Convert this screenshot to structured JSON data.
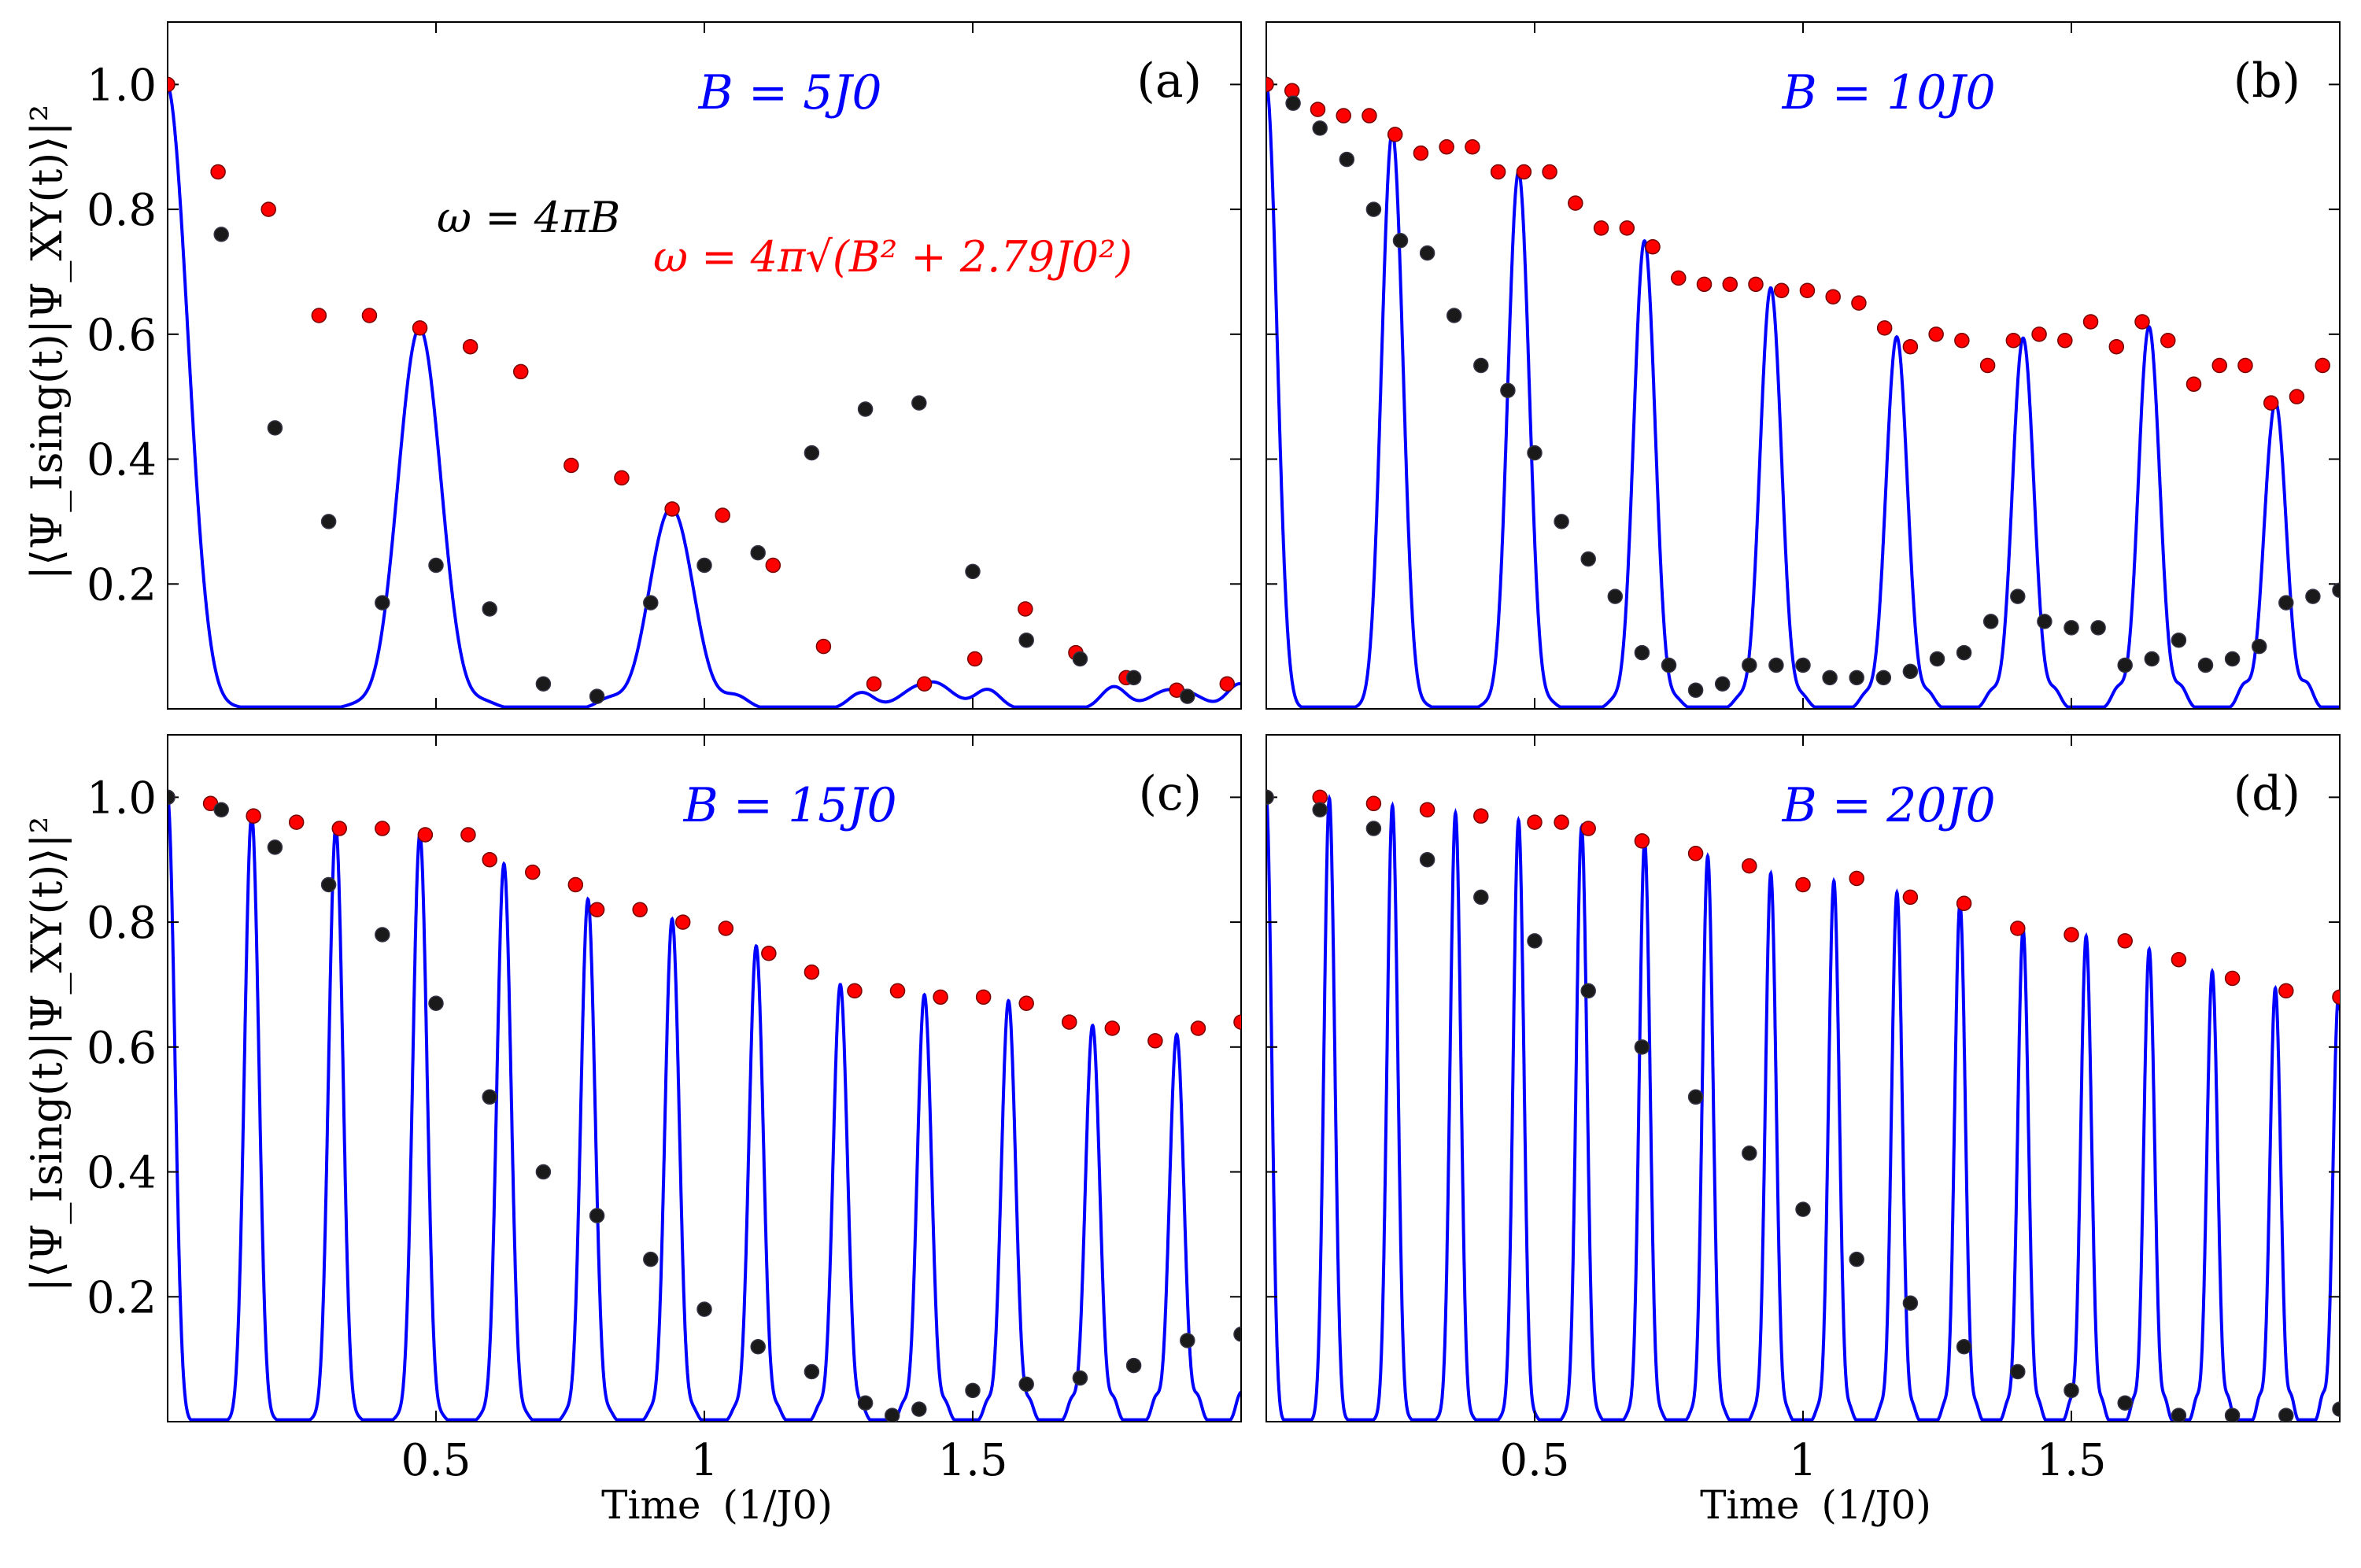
{
  "chart_data": {
    "type": "line",
    "xlabel": "Time",
    "xlabel_unit": "(1/J0)",
    "ylabel": "|⟨Ψ_Ising(t)|Ψ_XY(t)⟩|²",
    "xlim": [
      0,
      2
    ],
    "ylim": [
      0,
      1.1
    ],
    "xticks": [
      "0.5",
      "1",
      "1.5"
    ],
    "yticks": [
      "0.2",
      "0.4",
      "0.6",
      "0.8",
      "1.0"
    ],
    "colors": {
      "line": "#0000ff",
      "red_markers": "#ff0000",
      "black_markers": "#000000"
    },
    "legend_annotations": {
      "black": "ω = 4πB",
      "red": "ω = 4π√(B² + 2.79J0²)"
    },
    "panels": [
      {
        "id": "a",
        "letter": "(a)",
        "B_label": "B = 5J0",
        "B": 5,
        "red_markers": [
          [
            0,
            1.0
          ],
          [
            0.094,
            0.86
          ],
          [
            0.188,
            0.8
          ],
          [
            0.282,
            0.63
          ],
          [
            0.376,
            0.63
          ],
          [
            0.47,
            0.61
          ],
          [
            0.564,
            0.58
          ],
          [
            0.658,
            0.54
          ],
          [
            0.752,
            0.39
          ],
          [
            0.846,
            0.37
          ],
          [
            0.94,
            0.32
          ],
          [
            1.034,
            0.31
          ],
          [
            1.128,
            0.23
          ],
          [
            1.222,
            0.1
          ],
          [
            1.316,
            0.04
          ],
          [
            1.41,
            0.04
          ],
          [
            1.504,
            0.08
          ],
          [
            1.598,
            0.16
          ],
          [
            1.692,
            0.09
          ],
          [
            1.786,
            0.05
          ],
          [
            1.88,
            0.03
          ],
          [
            1.974,
            0.04
          ]
        ],
        "black_markers": [
          [
            0.1,
            0.76
          ],
          [
            0.2,
            0.45
          ],
          [
            0.3,
            0.3
          ],
          [
            0.4,
            0.17
          ],
          [
            0.5,
            0.23
          ],
          [
            0.6,
            0.16
          ],
          [
            0.7,
            0.04
          ],
          [
            0.8,
            0.02
          ],
          [
            0.9,
            0.17
          ],
          [
            1.0,
            0.23
          ],
          [
            1.1,
            0.25
          ],
          [
            1.2,
            0.41
          ],
          [
            1.3,
            0.48
          ],
          [
            1.4,
            0.49
          ],
          [
            1.5,
            0.22
          ],
          [
            1.6,
            0.11
          ],
          [
            1.7,
            0.08
          ],
          [
            1.8,
            0.05
          ],
          [
            1.9,
            0.02
          ]
        ]
      },
      {
        "id": "b",
        "letter": "(b)",
        "B_label": "B = 10J0",
        "B": 10,
        "red_markers": [
          [
            0.0,
            1.0
          ],
          [
            0.048,
            0.99
          ],
          [
            0.096,
            0.96
          ],
          [
            0.144,
            0.95
          ],
          [
            0.192,
            0.95
          ],
          [
            0.24,
            0.92
          ],
          [
            0.288,
            0.89
          ],
          [
            0.336,
            0.9
          ],
          [
            0.384,
            0.9
          ],
          [
            0.432,
            0.86
          ],
          [
            0.48,
            0.86
          ],
          [
            0.528,
            0.86
          ],
          [
            0.576,
            0.81
          ],
          [
            0.624,
            0.77
          ],
          [
            0.672,
            0.77
          ],
          [
            0.72,
            0.74
          ],
          [
            0.768,
            0.69
          ],
          [
            0.816,
            0.68
          ],
          [
            0.864,
            0.68
          ],
          [
            0.912,
            0.68
          ],
          [
            0.96,
            0.67
          ],
          [
            1.008,
            0.67
          ],
          [
            1.056,
            0.66
          ],
          [
            1.104,
            0.65
          ],
          [
            1.152,
            0.61
          ],
          [
            1.2,
            0.58
          ],
          [
            1.248,
            0.6
          ],
          [
            1.296,
            0.59
          ],
          [
            1.344,
            0.55
          ],
          [
            1.392,
            0.59
          ],
          [
            1.44,
            0.6
          ],
          [
            1.488,
            0.59
          ],
          [
            1.536,
            0.62
          ],
          [
            1.584,
            0.58
          ],
          [
            1.632,
            0.62
          ],
          [
            1.68,
            0.59
          ],
          [
            1.728,
            0.52
          ],
          [
            1.776,
            0.55
          ],
          [
            1.824,
            0.55
          ],
          [
            1.872,
            0.49
          ],
          [
            1.92,
            0.5
          ],
          [
            1.968,
            0.55
          ]
        ],
        "black_markers": [
          [
            0.05,
            0.97
          ],
          [
            0.1,
            0.93
          ],
          [
            0.15,
            0.88
          ],
          [
            0.2,
            0.8
          ],
          [
            0.25,
            0.75
          ],
          [
            0.3,
            0.73
          ],
          [
            0.35,
            0.63
          ],
          [
            0.4,
            0.55
          ],
          [
            0.45,
            0.51
          ],
          [
            0.5,
            0.41
          ],
          [
            0.55,
            0.3
          ],
          [
            0.6,
            0.24
          ],
          [
            0.65,
            0.18
          ],
          [
            0.7,
            0.09
          ],
          [
            0.75,
            0.07
          ],
          [
            0.8,
            0.03
          ],
          [
            0.85,
            0.04
          ],
          [
            0.9,
            0.07
          ],
          [
            0.95,
            0.07
          ],
          [
            1.0,
            0.07
          ],
          [
            1.05,
            0.05
          ],
          [
            1.1,
            0.05
          ],
          [
            1.15,
            0.05
          ],
          [
            1.2,
            0.06
          ],
          [
            1.25,
            0.08
          ],
          [
            1.3,
            0.09
          ],
          [
            1.35,
            0.14
          ],
          [
            1.4,
            0.18
          ],
          [
            1.45,
            0.14
          ],
          [
            1.5,
            0.13
          ],
          [
            1.55,
            0.13
          ],
          [
            1.6,
            0.07
          ],
          [
            1.65,
            0.08
          ],
          [
            1.7,
            0.11
          ],
          [
            1.75,
            0.07
          ],
          [
            1.8,
            0.08
          ],
          [
            1.85,
            0.1
          ],
          [
            1.9,
            0.17
          ],
          [
            1.95,
            0.18
          ],
          [
            2.0,
            0.19
          ]
        ]
      },
      {
        "id": "c",
        "letter": "(c)",
        "B_label": "B = 15J0",
        "B": 15,
        "red_markers": [
          [
            0,
            1.0
          ],
          [
            0.08,
            0.99
          ],
          [
            0.16,
            0.97
          ],
          [
            0.24,
            0.96
          ],
          [
            0.32,
            0.95
          ],
          [
            0.4,
            0.95
          ],
          [
            0.48,
            0.94
          ],
          [
            0.56,
            0.94
          ],
          [
            0.6,
            0.9
          ],
          [
            0.68,
            0.88
          ],
          [
            0.76,
            0.86
          ],
          [
            0.8,
            0.82
          ],
          [
            0.88,
            0.82
          ],
          [
            0.96,
            0.8
          ],
          [
            1.04,
            0.79
          ],
          [
            1.12,
            0.75
          ],
          [
            1.2,
            0.72
          ],
          [
            1.28,
            0.69
          ],
          [
            1.36,
            0.69
          ],
          [
            1.44,
            0.68
          ],
          [
            1.52,
            0.68
          ],
          [
            1.6,
            0.67
          ],
          [
            1.68,
            0.64
          ],
          [
            1.76,
            0.63
          ],
          [
            1.84,
            0.61
          ],
          [
            1.92,
            0.63
          ],
          [
            2.0,
            0.64
          ]
        ],
        "black_markers": [
          [
            0,
            1.0
          ],
          [
            0.1,
            0.98
          ],
          [
            0.2,
            0.92
          ],
          [
            0.3,
            0.86
          ],
          [
            0.4,
            0.78
          ],
          [
            0.5,
            0.67
          ],
          [
            0.6,
            0.52
          ],
          [
            0.7,
            0.4
          ],
          [
            0.8,
            0.33
          ],
          [
            0.9,
            0.26
          ],
          [
            1.0,
            0.18
          ],
          [
            1.1,
            0.12
          ],
          [
            1.2,
            0.08
          ],
          [
            1.3,
            0.03
          ],
          [
            1.35,
            0.01
          ],
          [
            1.4,
            0.02
          ],
          [
            1.5,
            0.05
          ],
          [
            1.6,
            0.06
          ],
          [
            1.7,
            0.07
          ],
          [
            1.8,
            0.09
          ],
          [
            1.9,
            0.13
          ],
          [
            2.0,
            0.14
          ]
        ]
      },
      {
        "id": "d",
        "letter": "(d)",
        "B_label": "B = 20J0",
        "B": 20,
        "red_markers": [
          [
            0,
            1.0
          ],
          [
            0.1,
            1.0
          ],
          [
            0.2,
            0.99
          ],
          [
            0.3,
            0.98
          ],
          [
            0.4,
            0.97
          ],
          [
            0.5,
            0.96
          ],
          [
            0.55,
            0.96
          ],
          [
            0.6,
            0.95
          ],
          [
            0.7,
            0.93
          ],
          [
            0.8,
            0.91
          ],
          [
            0.9,
            0.89
          ],
          [
            1.0,
            0.86
          ],
          [
            1.1,
            0.87
          ],
          [
            1.2,
            0.84
          ],
          [
            1.3,
            0.83
          ],
          [
            1.4,
            0.79
          ],
          [
            1.5,
            0.78
          ],
          [
            1.6,
            0.77
          ],
          [
            1.7,
            0.74
          ],
          [
            1.8,
            0.71
          ],
          [
            1.9,
            0.69
          ],
          [
            2.0,
            0.68
          ]
        ],
        "black_markers": [
          [
            0,
            1.0
          ],
          [
            0.1,
            0.98
          ],
          [
            0.2,
            0.95
          ],
          [
            0.3,
            0.9
          ],
          [
            0.4,
            0.84
          ],
          [
            0.5,
            0.77
          ],
          [
            0.6,
            0.69
          ],
          [
            0.7,
            0.6
          ],
          [
            0.8,
            0.52
          ],
          [
            0.9,
            0.43
          ],
          [
            1.0,
            0.34
          ],
          [
            1.1,
            0.26
          ],
          [
            1.2,
            0.19
          ],
          [
            1.3,
            0.12
          ],
          [
            1.4,
            0.08
          ],
          [
            1.5,
            0.05
          ],
          [
            1.6,
            0.03
          ],
          [
            1.7,
            0.01
          ],
          [
            1.8,
            0.01
          ],
          [
            1.9,
            0.01
          ],
          [
            2.0,
            0.02
          ]
        ]
      }
    ]
  }
}
